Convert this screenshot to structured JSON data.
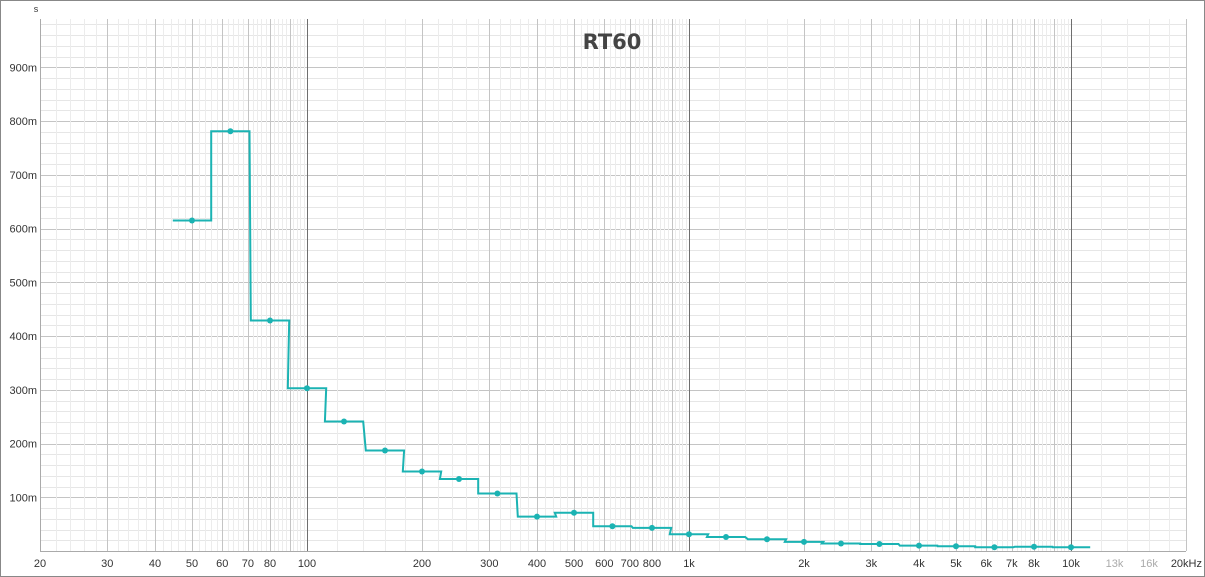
{
  "chart_data": {
    "type": "line",
    "title": "RT60",
    "ylabel": "s",
    "xunit": "kHz",
    "x_scale": "log",
    "xlim": [
      20,
      20000
    ],
    "ylim": [
      0,
      0.99
    ],
    "grid": true,
    "legend": "none",
    "line_color": "#1bb3b3",
    "x_tick_values": [
      20,
      30,
      40,
      50,
      60,
      70,
      80,
      100,
      200,
      300,
      400,
      500,
      600,
      700,
      800,
      1000,
      2000,
      3000,
      4000,
      5000,
      6000,
      7000,
      8000,
      10000,
      13000,
      16000,
      20000
    ],
    "x_tick_labels": [
      "20",
      "30",
      "40",
      "50",
      "60",
      "70",
      "80",
      "100",
      "200",
      "300",
      "400",
      "500",
      "600",
      "700",
      "800",
      "1k",
      "2k",
      "3k",
      "4k",
      "5k",
      "6k",
      "7k",
      "8k",
      "10k",
      "13k",
      "16k",
      "20kHz"
    ],
    "y_tick_values": [
      0.1,
      0.2,
      0.3,
      0.4,
      0.5,
      0.6,
      0.7,
      0.8,
      0.9
    ],
    "y_tick_labels": [
      "100m",
      "200m",
      "300m",
      "400m",
      "500m",
      "600m",
      "700m",
      "800m",
      "900m"
    ],
    "series": [
      {
        "x": [
          50,
          63,
          80,
          100,
          125,
          160,
          200,
          250,
          315,
          400,
          500,
          630,
          800,
          1000,
          1250,
          1600,
          2000,
          2500,
          3150,
          4000,
          5000,
          6300,
          8000,
          10000
        ],
        "values": [
          0.615,
          0.781,
          0.429,
          0.303,
          0.241,
          0.187,
          0.148,
          0.134,
          0.107,
          0.064,
          0.071,
          0.046,
          0.043,
          0.031,
          0.026,
          0.022,
          0.017,
          0.014,
          0.013,
          0.01,
          0.009,
          0.007,
          0.008,
          0.007
        ]
      }
    ]
  }
}
